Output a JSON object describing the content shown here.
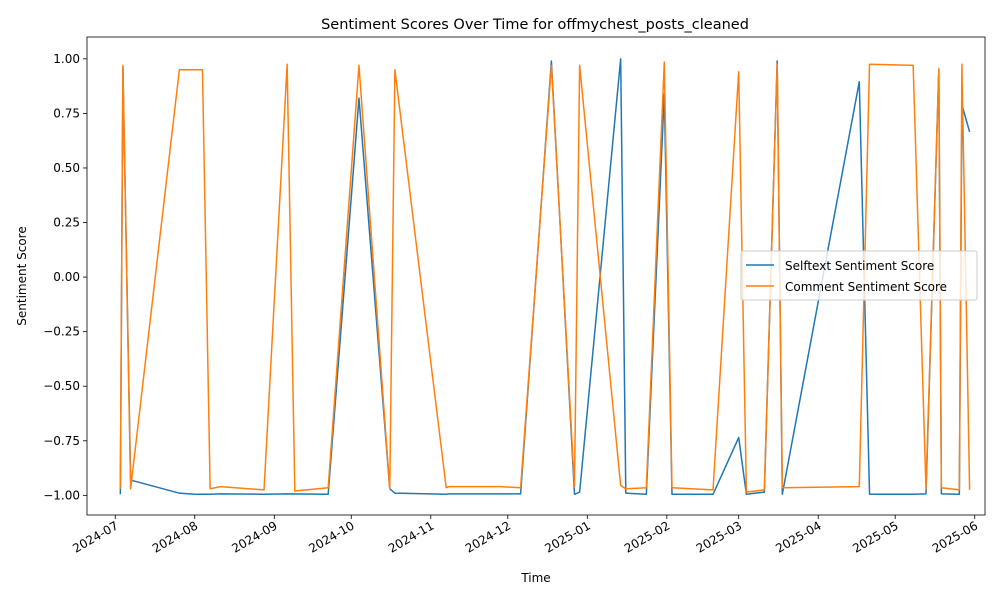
{
  "chart_data": {
    "type": "line",
    "title": "Sentiment Scores Over Time for offmychest_posts_cleaned",
    "xlabel": "Time",
    "ylabel": "Sentiment Score",
    "xlim": [
      "2024-06-20",
      "2025-06-05"
    ],
    "ylim": [
      -1.09,
      1.1
    ],
    "x_ticks": [
      "2024-07",
      "2024-08",
      "2024-09",
      "2024-10",
      "2024-11",
      "2024-12",
      "2025-01",
      "2025-02",
      "2025-03",
      "2025-04",
      "2025-05",
      "2025-06"
    ],
    "x_tick_dates": [
      "2024-07-01",
      "2024-08-01",
      "2024-09-01",
      "2024-10-01",
      "2024-11-01",
      "2024-12-01",
      "2025-01-01",
      "2025-02-01",
      "2025-03-01",
      "2025-04-01",
      "2025-05-01",
      "2025-06-01"
    ],
    "y_ticks": [
      "1.00",
      "0.75",
      "0.50",
      "0.25",
      "0.00",
      "−0.25",
      "−0.50",
      "−0.75",
      "−1.00"
    ],
    "y_tick_values": [
      1.0,
      0.75,
      0.5,
      0.25,
      0.0,
      -0.25,
      -0.5,
      -0.75,
      -1.0
    ],
    "grid": false,
    "legend_position": "center-right",
    "series": [
      {
        "name": "Selftext Sentiment Score",
        "color": "#1f77b4",
        "points": [
          [
            "2024-07-03",
            -0.995
          ],
          [
            "2024-07-04",
            0.96
          ],
          [
            "2024-07-07",
            -0.93
          ],
          [
            "2024-07-26",
            -0.99
          ],
          [
            "2024-08-01",
            -0.995
          ],
          [
            "2024-08-07",
            -0.995
          ],
          [
            "2024-08-11",
            -0.993
          ],
          [
            "2024-08-28",
            -0.995
          ],
          [
            "2024-09-06",
            -0.993
          ],
          [
            "2024-09-22",
            -0.995
          ],
          [
            "2024-10-04",
            0.82
          ],
          [
            "2024-10-16",
            -0.97
          ],
          [
            "2024-10-18",
            -0.99
          ],
          [
            "2024-11-07",
            -0.995
          ],
          [
            "2024-11-08",
            -0.993
          ],
          [
            "2024-11-28",
            -0.993
          ],
          [
            "2024-12-06",
            -0.993
          ],
          [
            "2024-12-18",
            0.99
          ],
          [
            "2024-12-27",
            -0.995
          ],
          [
            "2024-12-29",
            -0.985
          ],
          [
            "2025-01-14",
            1.0
          ],
          [
            "2025-01-16",
            -0.99
          ],
          [
            "2025-01-24",
            -0.995
          ],
          [
            "2025-01-31",
            0.84
          ],
          [
            "2025-02-03",
            -0.995
          ],
          [
            "2025-02-19",
            -0.995
          ],
          [
            "2025-03-01",
            -0.735
          ],
          [
            "2025-03-04",
            -0.995
          ],
          [
            "2025-03-11",
            -0.985
          ],
          [
            "2025-03-16",
            0.99
          ],
          [
            "2025-03-18",
            -0.995
          ],
          [
            "2025-04-17",
            0.895
          ],
          [
            "2025-04-21",
            -0.995
          ],
          [
            "2025-05-08",
            -0.995
          ],
          [
            "2025-05-13",
            -0.993
          ],
          [
            "2025-05-18",
            0.95
          ],
          [
            "2025-05-19",
            -0.993
          ],
          [
            "2025-05-26",
            -0.995
          ],
          [
            "2025-05-27",
            0.79
          ],
          [
            "2025-05-30",
            0.665
          ]
        ]
      },
      {
        "name": "Comment Sentiment Score",
        "color": "#ff7f0e",
        "points": [
          [
            "2024-07-03",
            -0.97
          ],
          [
            "2024-07-04",
            0.97
          ],
          [
            "2024-07-07",
            -0.97
          ],
          [
            "2024-07-26",
            0.95
          ],
          [
            "2024-08-04",
            0.95
          ],
          [
            "2024-08-07",
            -0.97
          ],
          [
            "2024-08-11",
            -0.96
          ],
          [
            "2024-08-28",
            -0.975
          ],
          [
            "2024-09-06",
            0.975
          ],
          [
            "2024-09-09",
            -0.98
          ],
          [
            "2024-09-22",
            -0.965
          ],
          [
            "2024-10-04",
            0.97
          ],
          [
            "2024-10-16",
            -0.97
          ],
          [
            "2024-10-18",
            0.95
          ],
          [
            "2024-11-07",
            -0.965
          ],
          [
            "2024-11-08",
            -0.96
          ],
          [
            "2024-11-28",
            -0.96
          ],
          [
            "2024-12-06",
            -0.965
          ],
          [
            "2024-12-18",
            0.97
          ],
          [
            "2024-12-27",
            -0.96
          ],
          [
            "2024-12-29",
            0.97
          ],
          [
            "2025-01-14",
            -0.955
          ],
          [
            "2025-01-16",
            -0.97
          ],
          [
            "2025-01-24",
            -0.965
          ],
          [
            "2025-01-31",
            0.985
          ],
          [
            "2025-02-03",
            -0.965
          ],
          [
            "2025-02-19",
            -0.975
          ],
          [
            "2025-03-01",
            0.94
          ],
          [
            "2025-03-04",
            -0.985
          ],
          [
            "2025-03-11",
            -0.975
          ],
          [
            "2025-03-16",
            0.975
          ],
          [
            "2025-03-18",
            -0.965
          ],
          [
            "2025-04-17",
            -0.96
          ],
          [
            "2025-04-21",
            0.975
          ],
          [
            "2025-05-08",
            0.97
          ],
          [
            "2025-05-13",
            -0.97
          ],
          [
            "2025-05-18",
            0.955
          ],
          [
            "2025-05-19",
            -0.965
          ],
          [
            "2025-05-26",
            -0.975
          ],
          [
            "2025-05-27",
            0.975
          ],
          [
            "2025-05-30",
            -0.975
          ]
        ]
      }
    ]
  }
}
